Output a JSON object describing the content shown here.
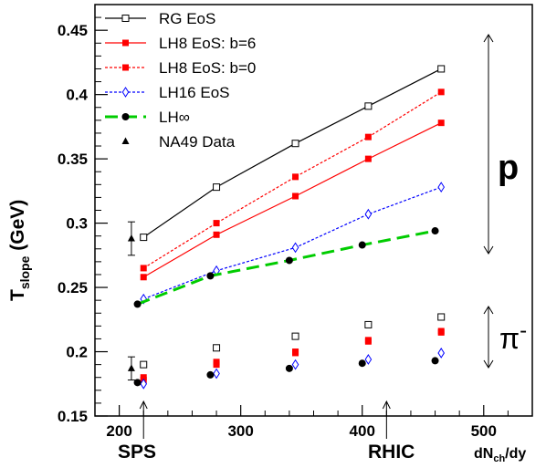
{
  "chart_data": {
    "type": "line",
    "xlim": [
      180,
      540
    ],
    "ylim": [
      0.15,
      0.47
    ],
    "x_ticks": [
      200,
      300,
      400,
      500
    ],
    "y_ticks": [
      0.15,
      0.2,
      0.25,
      0.3,
      0.35,
      0.4,
      0.45
    ],
    "x_tick_labels": [
      "200",
      "300",
      "400",
      "500"
    ],
    "y_tick_labels": [
      "0.15",
      "0.2",
      "0.25",
      "0.3",
      "0.35",
      "0.4",
      "0.45"
    ],
    "xlabel": {
      "main": "dN",
      "sub": "ch",
      "tail": "/dy"
    },
    "ylabel": {
      "main": "T",
      "sub": "slope",
      "tail": " (GeV)"
    },
    "grid": false,
    "legend_position": "top-left",
    "series": [
      {
        "name": "RG EoS",
        "marker": "open-square",
        "line": "solid",
        "color": "#000000",
        "proton": {
          "x": [
            220,
            280,
            345,
            405,
            465
          ],
          "y": [
            0.289,
            0.328,
            0.362,
            0.391,
            0.42
          ]
        },
        "pion": {
          "x": [
            220,
            280,
            345,
            405,
            465
          ],
          "y": [
            0.19,
            0.203,
            0.212,
            0.221,
            0.227
          ]
        }
      },
      {
        "name": "LH8 EoS: b=6",
        "marker": "filled-square",
        "line": "solid",
        "color": "#ff0000",
        "proton": {
          "x": [
            220,
            280,
            345,
            405,
            465
          ],
          "y": [
            0.258,
            0.291,
            0.321,
            0.35,
            0.378
          ]
        },
        "pion": {
          "x": [
            220,
            280,
            345,
            405,
            465
          ],
          "y": [
            0.178,
            0.19,
            0.199,
            0.208,
            0.215
          ]
        }
      },
      {
        "name": "LH8 EoS: b=0",
        "marker": "filled-square",
        "line": "dotted",
        "color": "#ff0000",
        "proton": {
          "x": [
            220,
            280,
            345,
            405,
            465
          ],
          "y": [
            0.265,
            0.3,
            0.336,
            0.367,
            0.402
          ]
        },
        "pion": {
          "x": [
            220,
            280,
            345,
            405,
            465
          ],
          "y": [
            0.18,
            0.192,
            0.2,
            0.209,
            0.216
          ]
        }
      },
      {
        "name": "LH16 EoS",
        "marker": "open-diamond",
        "line": "dotted",
        "color": "#0000ff",
        "proton": {
          "x": [
            220,
            280,
            345,
            405,
            465
          ],
          "y": [
            0.241,
            0.263,
            0.281,
            0.307,
            0.328
          ]
        },
        "pion": {
          "x": [
            220,
            280,
            345,
            405,
            465
          ],
          "y": [
            0.175,
            0.183,
            0.19,
            0.194,
            0.199
          ]
        }
      },
      {
        "name": "LH∞",
        "marker": "filled-circle",
        "line": "dashed",
        "color": "#00cc00",
        "marker_color": "#000000",
        "proton": {
          "x": [
            215,
            275,
            340,
            400,
            460
          ],
          "y": [
            0.237,
            0.259,
            0.271,
            0.283,
            0.294
          ]
        },
        "pion": {
          "x": [
            215,
            275,
            340,
            400,
            460
          ],
          "y": [
            0.176,
            0.182,
            0.187,
            0.191,
            0.193
          ]
        }
      },
      {
        "name": "NA49 Data",
        "marker": "filled-triangle",
        "line": "none",
        "color": "#000000",
        "proton": {
          "x": [
            210
          ],
          "y": [
            0.288
          ],
          "err": [
            0.013
          ]
        },
        "pion": {
          "x": [
            210
          ],
          "y": [
            0.187
          ],
          "err": [
            0.009
          ]
        }
      }
    ],
    "annotations": {
      "proton_label": "p",
      "pion_label": {
        "main": "π",
        "sup": "-"
      },
      "sps": {
        "label": "SPS",
        "x": 220
      },
      "rhic": {
        "label": "RHIC",
        "x": 420
      }
    }
  }
}
